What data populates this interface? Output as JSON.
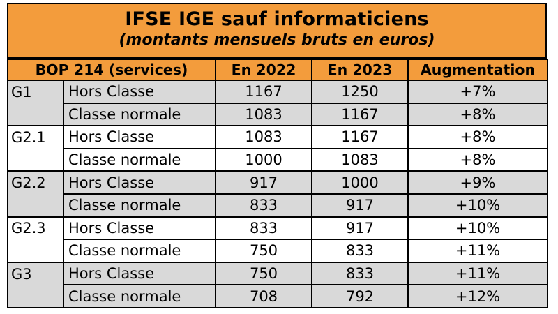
{
  "title": {
    "main": "IFSE IGE sauf informaticiens",
    "sub": "(montants mensuels bruts en euros)"
  },
  "header": {
    "bop": "BOP 214 (services)",
    "y2022": "En 2022",
    "y2023": "En 2023",
    "augmentation": "Augmentation"
  },
  "colors": {
    "header_bg": "#f39c3c",
    "shaded_row": "#d9d9d9"
  },
  "rows": [
    {
      "grade": "G1",
      "classe": "Hors Classe",
      "y2022": "1167",
      "y2023": "1250",
      "aug": "+7%"
    },
    {
      "grade": "",
      "classe": "Classe normale",
      "y2022": "1083",
      "y2023": "1167",
      "aug": "+8%"
    },
    {
      "grade": "G2.1",
      "classe": "Hors Classe",
      "y2022": "1083",
      "y2023": "1167",
      "aug": "+8%"
    },
    {
      "grade": "",
      "classe": "Classe normale",
      "y2022": "1000",
      "y2023": "1083",
      "aug": "+8%"
    },
    {
      "grade": "G2.2",
      "classe": "Hors Classe",
      "y2022": "917",
      "y2023": "1000",
      "aug": "+9%"
    },
    {
      "grade": "",
      "classe": "Classe normale",
      "y2022": "833",
      "y2023": "917",
      "aug": "+10%"
    },
    {
      "grade": "G2.3",
      "classe": "Hors Classe",
      "y2022": "833",
      "y2023": "917",
      "aug": "+10%"
    },
    {
      "grade": "",
      "classe": "Classe normale",
      "y2022": "750",
      "y2023": "833",
      "aug": "+11%"
    },
    {
      "grade": "G3",
      "classe": "Hors Classe",
      "y2022": "750",
      "y2023": "833",
      "aug": "+11%"
    },
    {
      "grade": "",
      "classe": "Classe normale",
      "y2022": "708",
      "y2023": "792",
      "aug": "+12%"
    }
  ],
  "row_shading": [
    "shade",
    "shade",
    "plain",
    "plain",
    "shade",
    "shade",
    "plain",
    "plain",
    "shade",
    "shade"
  ]
}
